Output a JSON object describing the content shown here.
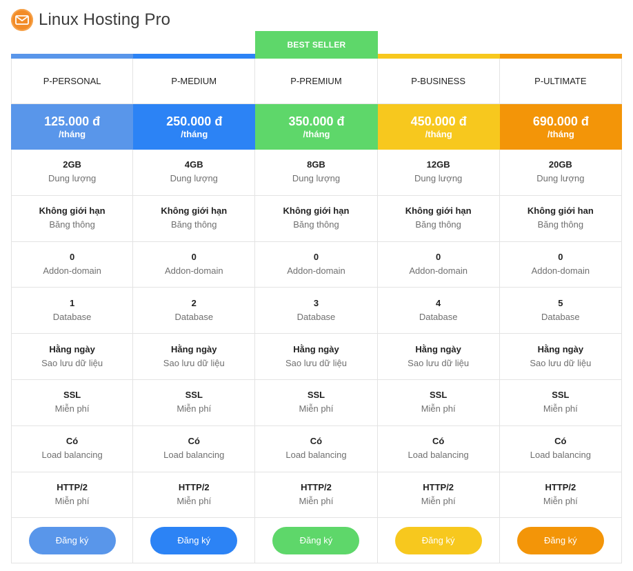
{
  "header": {
    "title": "Linux Hosting Pro",
    "logo_icon": "envelope-icon"
  },
  "best_seller_label": "BEST SELLER",
  "plans": [
    {
      "name": "P-PERSONAL",
      "price": "125.000 đ",
      "period": "/tháng",
      "color": "#5996ea",
      "features": [
        {
          "value": "2GB",
          "label": "Dung lượng"
        },
        {
          "value": "Không giới hạn",
          "label": "Băng thông"
        },
        {
          "value": "0",
          "label": "Addon-domain"
        },
        {
          "value": "1",
          "label": "Database"
        },
        {
          "value": "Hằng ngày",
          "label": "Sao lưu dữ liệu"
        },
        {
          "value": "SSL",
          "label": "Miễn phí"
        },
        {
          "value": "Có",
          "label": "Load balancing"
        },
        {
          "value": "HTTP/2",
          "label": "Miễn phí"
        }
      ],
      "button": "Đăng ký"
    },
    {
      "name": "P-MEDIUM",
      "price": "250.000 đ",
      "period": "/tháng",
      "color": "#2c83f5",
      "features": [
        {
          "value": "4GB",
          "label": "Dung lượng"
        },
        {
          "value": "Không giới hạn",
          "label": "Băng thông"
        },
        {
          "value": "0",
          "label": "Addon-domain"
        },
        {
          "value": "2",
          "label": "Database"
        },
        {
          "value": "Hằng ngày",
          "label": "Sao lưu dữ liệu"
        },
        {
          "value": "SSL",
          "label": "Miễn phí"
        },
        {
          "value": "Có",
          "label": "Load balancing"
        },
        {
          "value": "HTTP/2",
          "label": "Miễn phí"
        }
      ],
      "button": "Đăng ký"
    },
    {
      "name": "P-PREMIUM",
      "price": "350.000 đ",
      "period": "/tháng",
      "color": "#5ed76a",
      "features": [
        {
          "value": "8GB",
          "label": "Dung lượng"
        },
        {
          "value": "Không giới hạn",
          "label": "Băng thông"
        },
        {
          "value": "0",
          "label": "Addon-domain"
        },
        {
          "value": "3",
          "label": "Database"
        },
        {
          "value": "Hằng ngày",
          "label": "Sao lưu dữ liệu"
        },
        {
          "value": "SSL",
          "label": "Miễn phí"
        },
        {
          "value": "Có",
          "label": "Load balancing"
        },
        {
          "value": "HTTP/2",
          "label": "Miễn phí"
        }
      ],
      "button": "Đăng ký"
    },
    {
      "name": "P-BUSINESS",
      "price": "450.000 đ",
      "period": "/tháng",
      "color": "#f7c81e",
      "features": [
        {
          "value": "12GB",
          "label": "Dung lượng"
        },
        {
          "value": "Không giới hạn",
          "label": "Băng thông"
        },
        {
          "value": "0",
          "label": "Addon-domain"
        },
        {
          "value": "4",
          "label": "Database"
        },
        {
          "value": "Hằng ngày",
          "label": "Sao lưu dữ liệu"
        },
        {
          "value": "SSL",
          "label": "Miễn phí"
        },
        {
          "value": "Có",
          "label": "Load balancing"
        },
        {
          "value": "HTTP/2",
          "label": "Miễn phí"
        }
      ],
      "button": "Đăng ký"
    },
    {
      "name": "P-ULTIMATE",
      "price": "690.000 đ",
      "period": "/tháng",
      "color": "#f39508",
      "features": [
        {
          "value": "20GB",
          "label": "Dung lượng"
        },
        {
          "value": "Không giới han",
          "label": "Băng thông"
        },
        {
          "value": "0",
          "label": "Addon-domain"
        },
        {
          "value": "5",
          "label": "Database"
        },
        {
          "value": "Hằng ngày",
          "label": "Sao lưu dữ liệu"
        },
        {
          "value": "SSL",
          "label": "Miễn phí"
        },
        {
          "value": "Có",
          "label": "Load balancing"
        },
        {
          "value": "HTTP/2",
          "label": "Miễn phí"
        }
      ],
      "button": "Đăng ký"
    }
  ]
}
